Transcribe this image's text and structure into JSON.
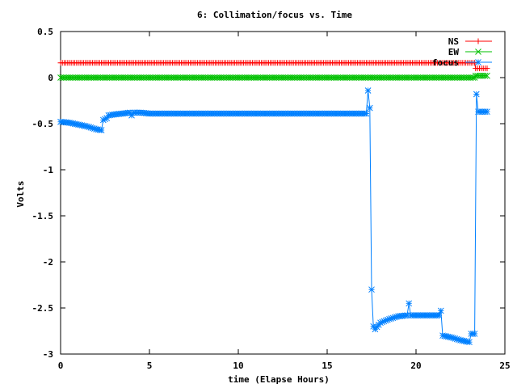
{
  "chart_data": {
    "type": "line",
    "title": "6: Collimation/focus vs. Time",
    "xlabel": "time (Elapse Hours)",
    "ylabel": "Volts",
    "xlim": [
      0,
      25
    ],
    "ylim": [
      -3,
      0.5
    ],
    "xticks": [
      0,
      5,
      10,
      15,
      20,
      25
    ],
    "yticks": [
      0.5,
      0,
      -0.5,
      -1,
      -1.5,
      -2,
      -2.5,
      -3
    ],
    "ytick_labels": [
      "0.5",
      "0",
      "-0.5",
      "-1",
      "-1.5",
      "-2",
      "-2.5",
      "-3"
    ],
    "xtick_labels": [
      "0",
      "5",
      "10",
      "15",
      "20",
      "25"
    ],
    "grid": false,
    "legend_position": "top-right",
    "series": [
      {
        "name": "NS",
        "color": "#ff0000",
        "marker": "plus",
        "points": [
          [
            0,
            0.16
          ],
          [
            23.3,
            0.16
          ],
          [
            23.35,
            0.1
          ],
          [
            24.0,
            0.1
          ]
        ]
      },
      {
        "name": "EW",
        "color": "#00c000",
        "marker": "cross",
        "points": [
          [
            0,
            0.0
          ],
          [
            23.3,
            0.0
          ],
          [
            23.35,
            0.02
          ],
          [
            24.0,
            0.02
          ]
        ]
      },
      {
        "name": "focus",
        "color": "#0080ff",
        "marker": "star",
        "points": [
          [
            0,
            -0.48
          ],
          [
            0.5,
            -0.49
          ],
          [
            1.0,
            -0.51
          ],
          [
            1.5,
            -0.53
          ],
          [
            2.0,
            -0.56
          ],
          [
            2.3,
            -0.57
          ],
          [
            2.4,
            -0.46
          ],
          [
            2.6,
            -0.44
          ],
          [
            2.7,
            -0.41
          ],
          [
            3.0,
            -0.4
          ],
          [
            3.5,
            -0.39
          ],
          [
            3.9,
            -0.38
          ],
          [
            4.0,
            -0.41
          ],
          [
            4.1,
            -0.38
          ],
          [
            4.5,
            -0.38
          ],
          [
            5.0,
            -0.39
          ],
          [
            8.0,
            -0.39
          ],
          [
            12.0,
            -0.39
          ],
          [
            16.0,
            -0.39
          ],
          [
            17.2,
            -0.39
          ],
          [
            17.3,
            -0.14
          ],
          [
            17.4,
            -0.33
          ],
          [
            17.5,
            -2.3
          ],
          [
            17.6,
            -2.7
          ],
          [
            17.7,
            -2.73
          ],
          [
            18.0,
            -2.66
          ],
          [
            18.5,
            -2.62
          ],
          [
            19.0,
            -2.59
          ],
          [
            19.5,
            -2.58
          ],
          [
            19.6,
            -2.45
          ],
          [
            19.7,
            -2.58
          ],
          [
            20.5,
            -2.58
          ],
          [
            21.3,
            -2.58
          ],
          [
            21.4,
            -2.53
          ],
          [
            21.5,
            -2.8
          ],
          [
            22.0,
            -2.82
          ],
          [
            22.5,
            -2.85
          ],
          [
            23.0,
            -2.87
          ],
          [
            23.1,
            -2.78
          ],
          [
            23.3,
            -2.78
          ],
          [
            23.4,
            -0.18
          ],
          [
            23.5,
            -0.37
          ],
          [
            23.7,
            -0.37
          ],
          [
            24.0,
            -0.37
          ]
        ]
      }
    ]
  }
}
